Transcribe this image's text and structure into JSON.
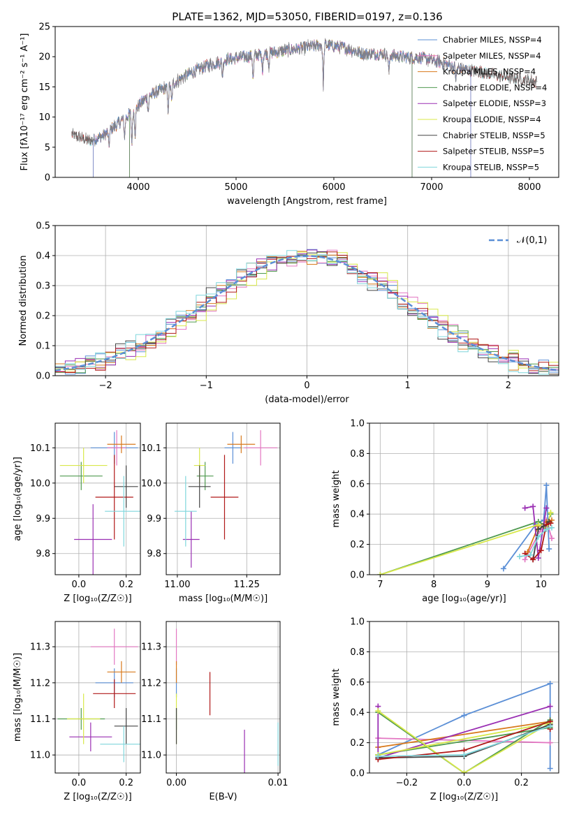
{
  "chart_data": [
    {
      "id": "spectrum",
      "type": "line",
      "title": "PLATE=1362, MJD=53050, FIBERID=0197, z=0.136",
      "xlabel": "wavelength [Angstrom, rest frame]",
      "ylabel": "Flux [fλ10⁻¹⁷ erg cm⁻² s⁻¹ A⁻¹]",
      "xlim": [
        3150,
        8300
      ],
      "ylim": [
        0,
        25
      ],
      "xticks": [
        4000,
        5000,
        6000,
        7000,
        8000
      ],
      "yticks": [
        0,
        5,
        10,
        15,
        20,
        25
      ],
      "grid": false,
      "legend_position": "upper-right",
      "series": [
        {
          "name": "Chabrier MILES, N_SSP=4",
          "color": "#5b8fd6",
          "range": [
            3540,
            7400
          ]
        },
        {
          "name": "Salpeter MILES, N_SSP=4",
          "color": "#e377c2",
          "range": [
            3540,
            7400
          ]
        },
        {
          "name": "Kroupa MILES, N_SSP=4",
          "color": "#d87a1c",
          "range": [
            3540,
            7400
          ]
        },
        {
          "name": "Chabrier ELODIE, N_SSP=4",
          "color": "#4f9a4f",
          "range": [
            3910,
            6800
          ]
        },
        {
          "name": "Salpeter ELODIE, N_SSP=3",
          "color": "#9a2fb3",
          "range": [
            3910,
            6800
          ]
        },
        {
          "name": "Kroupa ELODIE, N_SSP=4",
          "color": "#d8e84a",
          "range": [
            3910,
            6800
          ]
        },
        {
          "name": "Chabrier STELIB, N_SSP=5",
          "color": "#444444",
          "range": [
            3320,
            8070
          ]
        },
        {
          "name": "Salpeter STELIB, N_SSP=5",
          "color": "#b01818",
          "range": [
            3320,
            8070
          ]
        },
        {
          "name": "Kroupa STELIB, N_SSP=5",
          "color": "#7fd6dc",
          "range": [
            3320,
            8070
          ]
        }
      ],
      "data_color": "#808080",
      "envelope": [
        [
          3300,
          7.2
        ],
        [
          3500,
          6.0
        ],
        [
          3650,
          7.0
        ],
        [
          3800,
          9.0
        ],
        [
          3950,
          11.0
        ],
        [
          4100,
          13.5
        ],
        [
          4300,
          15.0
        ],
        [
          4500,
          17.0
        ],
        [
          4700,
          18.5
        ],
        [
          4900,
          19.5
        ],
        [
          5100,
          20.0
        ],
        [
          5300,
          20.5
        ],
        [
          5500,
          21.0
        ],
        [
          5700,
          21.5
        ],
        [
          5900,
          22.0
        ],
        [
          6100,
          21.5
        ],
        [
          6300,
          20.5
        ],
        [
          6500,
          20.5
        ],
        [
          6700,
          20.0
        ],
        [
          6900,
          19.8
        ],
        [
          7100,
          19.0
        ],
        [
          7300,
          18.0
        ],
        [
          7500,
          17.5
        ],
        [
          7700,
          16.8
        ],
        [
          7900,
          16.3
        ],
        [
          8080,
          15.8
        ]
      ],
      "absorption_lines": [
        [
          3700,
          2.5
        ],
        [
          3860,
          3.0
        ],
        [
          3934,
          5.0
        ],
        [
          3968,
          4.0
        ],
        [
          4102,
          2.5
        ],
        [
          4304,
          4.0
        ],
        [
          4341,
          3.0
        ],
        [
          4861,
          2.5
        ],
        [
          5175,
          4.0
        ],
        [
          5270,
          2.5
        ],
        [
          5335,
          2.0
        ],
        [
          5892,
          6.5
        ],
        [
          6563,
          3.0
        ],
        [
          7250,
          2.0
        ]
      ]
    },
    {
      "id": "residual-histogram",
      "type": "histogram",
      "xlabel": "(data-model)/error",
      "ylabel": "Normed distribution",
      "xlim": [
        -2.5,
        2.5
      ],
      "ylim": [
        0,
        0.5
      ],
      "xticks": [
        -2,
        -1,
        0,
        1,
        2
      ],
      "yticks": [
        0,
        0.1,
        0.2,
        0.3,
        0.4,
        0.5
      ],
      "grid": true,
      "legend_position": "upper-right",
      "bin_width": 0.1,
      "legend": [
        {
          "name": "𝒩(0,1)",
          "color": "#5b8fd6",
          "style": "dashed"
        }
      ],
      "histograms": [
        {
          "color": "#5b8fd6",
          "shift": 0.0
        },
        {
          "color": "#e377c2",
          "shift": 0.06
        },
        {
          "color": "#d87a1c",
          "shift": -0.04
        },
        {
          "color": "#4f9a4f",
          "shift": 0.02
        },
        {
          "color": "#9a2fb3",
          "shift": -0.02
        },
        {
          "color": "#d8e84a",
          "shift": 0.08
        },
        {
          "color": "#444444",
          "shift": -0.06
        },
        {
          "color": "#b01818",
          "shift": 0.04
        },
        {
          "color": "#7fd6dc",
          "shift": -0.08
        }
      ]
    },
    {
      "id": "age-vs-Z",
      "type": "scatter",
      "xlabel": "Z [log₁₀(Z/Z☉)]",
      "ylabel": "age [log₁₀(age/yr)]",
      "xlim": [
        -0.1,
        0.26
      ],
      "ylim": [
        9.74,
        10.17
      ],
      "xticks": [
        0.0,
        0.2
      ],
      "yticks": [
        9.8,
        9.9,
        10.0,
        10.1
      ],
      "grid": true,
      "points": [
        {
          "color": "#5b8fd6",
          "x": 0.15,
          "y": 10.1,
          "xe": 0.1,
          "ye": 0.045
        },
        {
          "color": "#e377c2",
          "x": 0.16,
          "y": 10.1,
          "xe": 0.04,
          "ye": 0.05
        },
        {
          "color": "#d87a1c",
          "x": 0.18,
          "y": 10.11,
          "xe": 0.06,
          "ye": 0.025
        },
        {
          "color": "#4f9a4f",
          "x": 0.01,
          "y": 10.02,
          "xe": 0.09,
          "ye": 0.04
        },
        {
          "color": "#9a2fb3",
          "x": 0.06,
          "y": 9.84,
          "xe": 0.08,
          "ye": 0.1
        },
        {
          "color": "#d8e84a",
          "x": 0.02,
          "y": 10.05,
          "xe": 0.1,
          "ye": 0.05
        },
        {
          "color": "#444444",
          "x": 0.2,
          "y": 9.99,
          "xe": 0.05,
          "ye": 0.06
        },
        {
          "color": "#b01818",
          "x": 0.15,
          "y": 9.96,
          "xe": 0.08,
          "ye": 0.12
        },
        {
          "color": "#7fd6dc",
          "x": 0.19,
          "y": 9.92,
          "xe": 0.08,
          "ye": 0.1
        }
      ]
    },
    {
      "id": "age-vs-mass",
      "type": "scatter",
      "xlabel": "mass [log₁₀(M/M☉)]",
      "ylabel": "",
      "xlim": [
        10.96,
        11.37
      ],
      "ylim": [
        9.74,
        10.17
      ],
      "xticks": [
        11.0,
        11.25
      ],
      "yticks": [
        9.8,
        9.9,
        10.0,
        10.1
      ],
      "grid": true,
      "points": [
        {
          "color": "#5b8fd6",
          "x": 11.2,
          "y": 10.1,
          "xe": 0.03,
          "ye": 0.045
        },
        {
          "color": "#e377c2",
          "x": 11.3,
          "y": 10.1,
          "xe": 0.06,
          "ye": 0.05
        },
        {
          "color": "#d87a1c",
          "x": 11.23,
          "y": 10.11,
          "xe": 0.05,
          "ye": 0.025
        },
        {
          "color": "#4f9a4f",
          "x": 11.1,
          "y": 10.02,
          "xe": 0.03,
          "ye": 0.04
        },
        {
          "color": "#9a2fb3",
          "x": 11.05,
          "y": 9.84,
          "xe": 0.03,
          "ye": 0.08
        },
        {
          "color": "#d8e84a",
          "x": 11.08,
          "y": 10.05,
          "xe": 0.02,
          "ye": 0.05
        },
        {
          "color": "#444444",
          "x": 11.08,
          "y": 9.99,
          "xe": 0.04,
          "ye": 0.06
        },
        {
          "color": "#b01818",
          "x": 11.17,
          "y": 9.96,
          "xe": 0.05,
          "ye": 0.12
        },
        {
          "color": "#7fd6dc",
          "x": 11.03,
          "y": 9.92,
          "xe": 0.04,
          "ye": 0.1
        }
      ]
    },
    {
      "id": "mass-vs-Z",
      "type": "scatter",
      "xlabel": "Z [log₁₀(Z/Z☉)]",
      "ylabel": "mass [log₁₀(M/M☉)]",
      "xlim": [
        -0.1,
        0.26
      ],
      "ylim": [
        10.95,
        11.37
      ],
      "xticks": [
        0.0,
        0.2
      ],
      "yticks": [
        11.0,
        11.1,
        11.2,
        11.3
      ],
      "grid": true,
      "points": [
        {
          "color": "#5b8fd6",
          "x": 0.15,
          "y": 11.2,
          "xe": 0.08,
          "ye": 0.04
        },
        {
          "color": "#e377c2",
          "x": 0.15,
          "y": 11.3,
          "xe": 0.1,
          "ye": 0.05
        },
        {
          "color": "#d87a1c",
          "x": 0.18,
          "y": 11.23,
          "xe": 0.06,
          "ye": 0.03
        },
        {
          "color": "#4f9a4f",
          "x": 0.01,
          "y": 11.1,
          "xe": 0.1,
          "ye": 0.03
        },
        {
          "color": "#9a2fb3",
          "x": 0.05,
          "y": 11.05,
          "xe": 0.09,
          "ye": 0.04
        },
        {
          "color": "#d8e84a",
          "x": 0.02,
          "y": 11.1,
          "xe": 0.07,
          "ye": 0.07
        },
        {
          "color": "#444444",
          "x": 0.2,
          "y": 11.08,
          "xe": 0.05,
          "ye": 0.05
        },
        {
          "color": "#b01818",
          "x": 0.15,
          "y": 11.17,
          "xe": 0.09,
          "ye": 0.04
        },
        {
          "color": "#7fd6dc",
          "x": 0.19,
          "y": 11.03,
          "xe": 0.1,
          "ye": 0.05
        }
      ]
    },
    {
      "id": "mass-vs-EBV",
      "type": "scatter",
      "xlabel": "E(B-V)",
      "ylabel": "",
      "xlim": [
        -0.001,
        0.0102
      ],
      "ylim": [
        10.95,
        11.37
      ],
      "xticks": [
        0.0,
        0.01
      ],
      "yticks": [
        11.0,
        11.1,
        11.2,
        11.3
      ],
      "grid": true,
      "points": [
        {
          "color": "#5b8fd6",
          "x": 0.0,
          "y": 11.2,
          "xe": 0,
          "ye": 0.04
        },
        {
          "color": "#e377c2",
          "x": 0.0,
          "y": 11.3,
          "xe": 0,
          "ye": 0.05
        },
        {
          "color": "#d87a1c",
          "x": 0.0,
          "y": 11.23,
          "xe": 0,
          "ye": 0.03
        },
        {
          "color": "#4f9a4f",
          "x": 0.0,
          "y": 11.1,
          "xe": 0,
          "ye": 0.03
        },
        {
          "color": "#9a2fb3",
          "x": 0.0067,
          "y": 11.0,
          "xe": 0,
          "ye": 0.07
        },
        {
          "color": "#d8e84a",
          "x": 0.0,
          "y": 11.1,
          "xe": 0,
          "ye": 0.07
        },
        {
          "color": "#444444",
          "x": 0.0,
          "y": 11.08,
          "xe": 0,
          "ye": 0.05
        },
        {
          "color": "#b01818",
          "x": 0.0033,
          "y": 11.17,
          "xe": 0,
          "ye": 0.06
        },
        {
          "color": "#7fd6dc",
          "x": 0.01,
          "y": 11.03,
          "xe": 0,
          "ye": 0.06
        }
      ]
    },
    {
      "id": "mass-weight-vs-age",
      "type": "line",
      "xlabel": "age [log₁₀(age/yr)]",
      "ylabel": "mass weight",
      "xlim": [
        6.8,
        10.33
      ],
      "ylim": [
        0,
        1.0
      ],
      "xticks": [
        7,
        8,
        9,
        10
      ],
      "yticks": [
        0.0,
        0.2,
        0.4,
        0.6,
        0.8,
        1.0
      ],
      "grid": true,
      "series": [
        {
          "color": "#5b8fd6",
          "points": [
            [
              9.3,
              0.04
            ],
            [
              9.9,
              0.33
            ],
            [
              10.05,
              0.36
            ],
            [
              10.1,
              0.59
            ],
            [
              10.15,
              0.17
            ]
          ]
        },
        {
          "color": "#e377c2",
          "points": [
            [
              9.7,
              0.1
            ],
            [
              10.0,
              0.3
            ],
            [
              10.1,
              0.36
            ],
            [
              10.2,
              0.24
            ]
          ]
        },
        {
          "color": "#d87a1c",
          "points": [
            [
              9.75,
              0.15
            ],
            [
              9.95,
              0.32
            ],
            [
              10.1,
              0.35
            ],
            [
              10.2,
              0.36
            ]
          ]
        },
        {
          "color": "#4f9a4f",
          "points": [
            [
              7.0,
              0.0
            ],
            [
              9.95,
              0.35
            ],
            [
              10.1,
              0.32
            ],
            [
              10.18,
              0.4
            ]
          ]
        },
        {
          "color": "#9a2fb3",
          "points": [
            [
              9.7,
              0.44
            ],
            [
              9.85,
              0.45
            ],
            [
              9.95,
              0.11
            ],
            [
              10.1,
              0.44
            ]
          ]
        },
        {
          "color": "#d8e84a",
          "points": [
            [
              7.0,
              0.0
            ],
            [
              9.95,
              0.33
            ],
            [
              10.1,
              0.3
            ],
            [
              10.18,
              0.41
            ]
          ]
        },
        {
          "color": "#444444",
          "points": [
            [
              9.85,
              0.1
            ],
            [
              9.95,
              0.3
            ],
            [
              10.05,
              0.32
            ],
            [
              10.15,
              0.35
            ]
          ]
        },
        {
          "color": "#b01818",
          "points": [
            [
              9.7,
              0.14
            ],
            [
              9.85,
              0.1
            ],
            [
              10.0,
              0.16
            ],
            [
              10.1,
              0.33
            ],
            [
              10.18,
              0.34
            ]
          ]
        },
        {
          "color": "#7fd6dc",
          "points": [
            [
              9.6,
              0.12
            ],
            [
              9.8,
              0.13
            ],
            [
              9.95,
              0.25
            ],
            [
              10.1,
              0.3
            ],
            [
              10.2,
              0.31
            ]
          ]
        }
      ]
    },
    {
      "id": "mass-weight-vs-Z",
      "type": "line",
      "xlabel": "Z [log₁₀(Z/Z☉)]",
      "ylabel": "mass weight",
      "xlim": [
        -0.33,
        0.33
      ],
      "ylim": [
        0,
        1.0
      ],
      "xticks": [
        -0.2,
        0.0,
        0.2
      ],
      "yticks": [
        0.0,
        0.2,
        0.4,
        0.6,
        0.8,
        1.0
      ],
      "grid": true,
      "series": [
        {
          "color": "#5b8fd6",
          "points": [
            [
              -0.3,
              0.12
            ],
            [
              0.0,
              0.38
            ],
            [
              0.3,
              0.59
            ],
            [
              0.3,
              0.03
            ],
            [
              0.3,
              0.33
            ]
          ]
        },
        {
          "color": "#e377c2",
          "points": [
            [
              -0.3,
              0.23
            ],
            [
              0.3,
              0.2
            ]
          ]
        },
        {
          "color": "#d87a1c",
          "points": [
            [
              -0.3,
              0.17
            ],
            [
              0.3,
              0.34
            ]
          ]
        },
        {
          "color": "#4f9a4f",
          "points": [
            [
              -0.3,
              0.4
            ],
            [
              0.0,
              0.0
            ],
            [
              0.3,
              0.35
            ],
            [
              0.3,
              0.3
            ],
            [
              -0.3,
              0.12
            ]
          ]
        },
        {
          "color": "#9a2fb3",
          "points": [
            [
              -0.3,
              0.44
            ],
            [
              -0.3,
              0.1
            ],
            [
              0.3,
              0.44
            ]
          ]
        },
        {
          "color": "#d8e84a",
          "points": [
            [
              -0.3,
              0.41
            ],
            [
              0.0,
              0.0
            ],
            [
              0.3,
              0.33
            ],
            [
              -0.3,
              0.12
            ]
          ]
        },
        {
          "color": "#444444",
          "points": [
            [
              -0.3,
              0.1
            ],
            [
              0.0,
              0.11
            ],
            [
              0.3,
              0.32
            ]
          ]
        },
        {
          "color": "#b01818",
          "points": [
            [
              -0.3,
              0.09
            ],
            [
              0.0,
              0.15
            ],
            [
              0.3,
              0.34
            ],
            [
              0.3,
              0.29
            ]
          ]
        },
        {
          "color": "#7fd6dc",
          "points": [
            [
              -0.3,
              0.11
            ],
            [
              0.0,
              0.12
            ],
            [
              0.3,
              0.31
            ]
          ]
        }
      ]
    }
  ]
}
